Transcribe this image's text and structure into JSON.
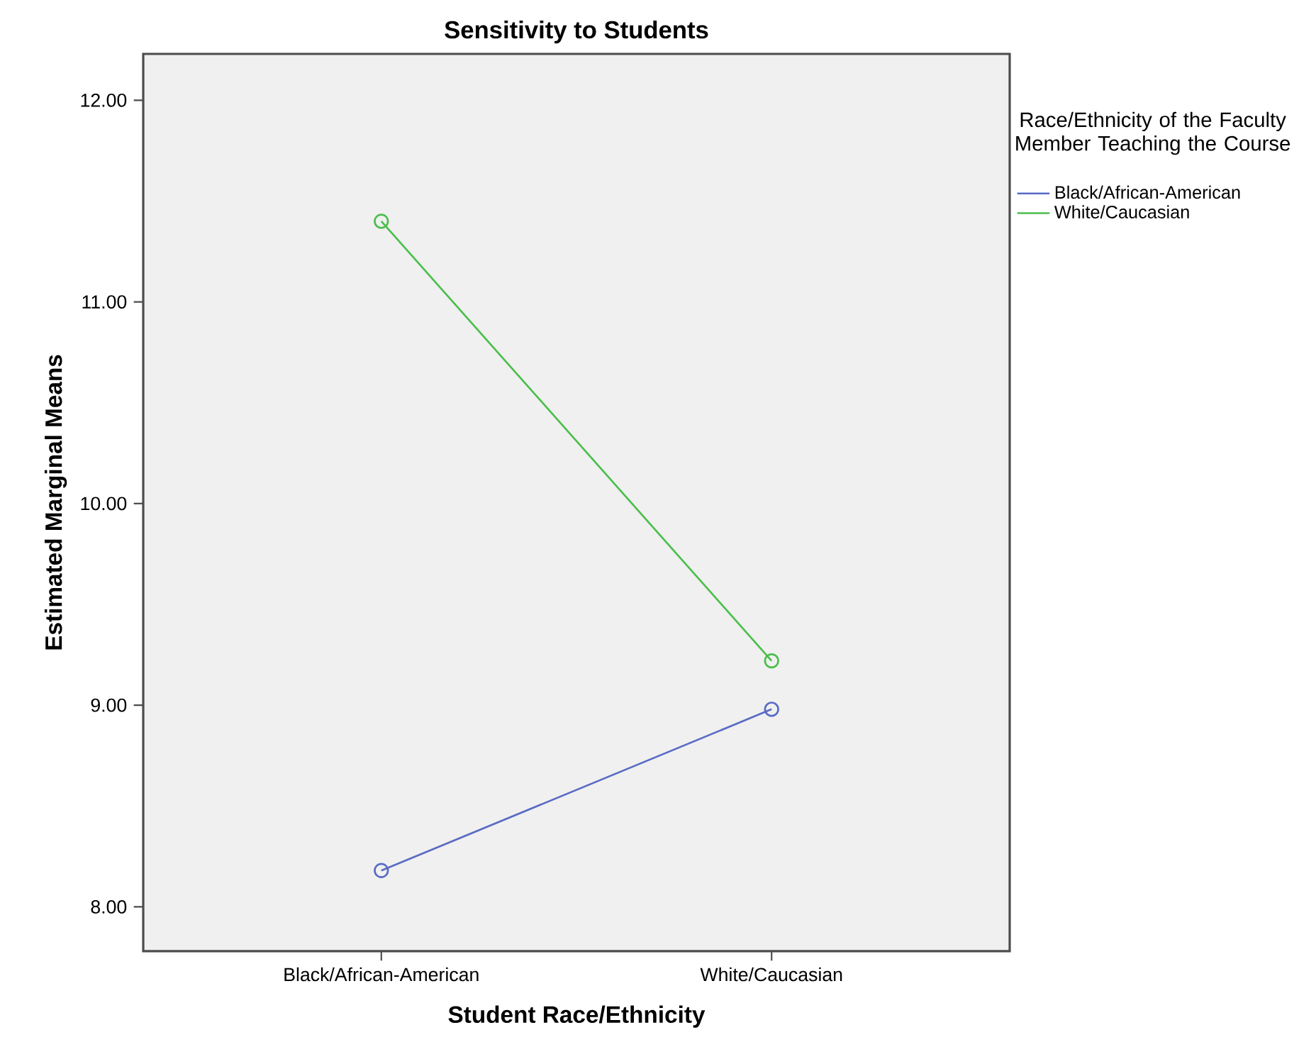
{
  "chart_data": {
    "type": "line",
    "title": "Sensitivity to Students",
    "xlabel": "Student Race/Ethnicity",
    "ylabel": "Estimated Marginal Means",
    "legend_title": "Race/Ethnicity of the Faculty Member Teaching the Course",
    "categories": [
      "Black/African-American",
      "White/Caucasian"
    ],
    "series": [
      {
        "name": "Black/African-American",
        "color": "#5a6bc4",
        "values": [
          8.18,
          8.98
        ]
      },
      {
        "name": "White/Caucasian",
        "color": "#4cbe4c",
        "values": [
          11.4,
          9.22
        ]
      }
    ],
    "ylim": [
      7.78,
      12.23
    ],
    "yticks": [
      {
        "value": 8,
        "label": "8.00"
      },
      {
        "value": 9,
        "label": "9.00"
      },
      {
        "value": 10,
        "label": "10.00"
      },
      {
        "value": 11,
        "label": "11.00"
      },
      {
        "value": 12,
        "label": "12.00"
      }
    ],
    "marker": "circle",
    "line_style": "solid",
    "grid": false,
    "legend": "right"
  }
}
